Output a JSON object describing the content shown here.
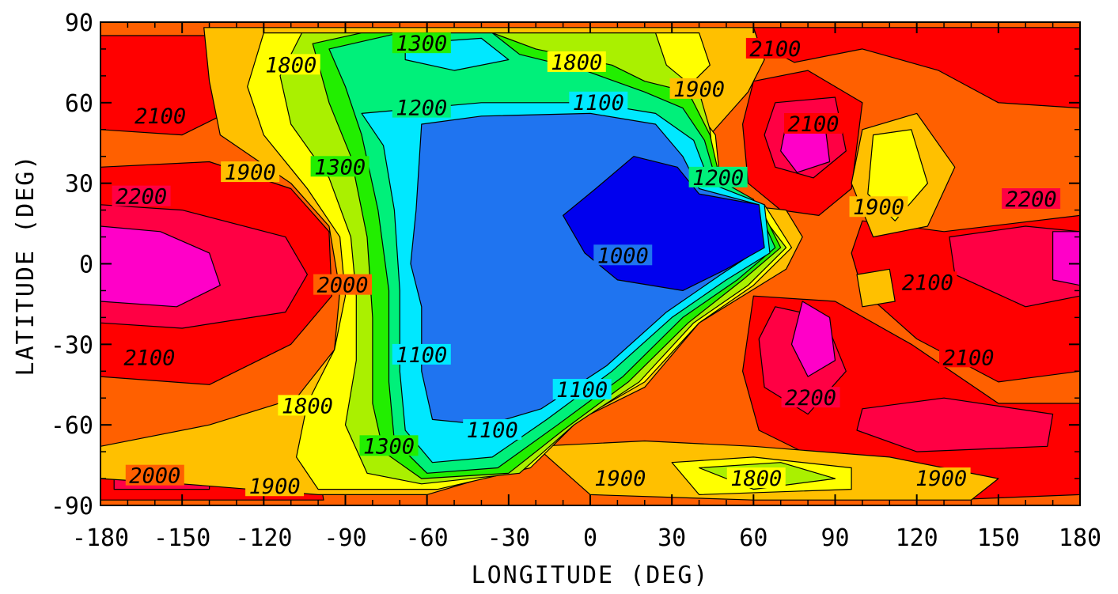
{
  "chart_data": {
    "type": "heatmap",
    "subtype": "filled-contour map",
    "xlabel": "LONGITUDE (DEG)",
    "ylabel": "LATITUDE (DEG)",
    "xlim": [
      -180,
      180
    ],
    "ylim": [
      -90,
      90
    ],
    "xticks": [
      "-180",
      "-150",
      "-120",
      "-90",
      "-60",
      "-30",
      "0",
      "30",
      "60",
      "90",
      "120",
      "150",
      "180"
    ],
    "yticks": [
      "90",
      "60",
      "30",
      "0",
      "-30",
      "-60",
      "-90"
    ],
    "contour_interval": 100,
    "contour_levels": [
      1000,
      1100,
      1200,
      1300,
      1400,
      1500,
      1600,
      1700,
      1800,
      1900,
      2000,
      2100,
      2200,
      2300
    ],
    "colors": {
      "lt1000": "#0000ee",
      "1000": "#1f74f0",
      "1100": "#00e8ff",
      "1200": "#00f07a",
      "1300": "#22ee00",
      "1600": "#aaf000",
      "1800": "#ffff00",
      "1900": "#ffc000",
      "2000": "#ff6000",
      "2100": "#ff0000",
      "2200": "#ff0044",
      "2300": "#ff00c8"
    },
    "contour_labels": [
      {
        "text": "1300",
        "lon": -62,
        "lat": 82
      },
      {
        "text": "1800",
        "lon": -110,
        "lat": 74
      },
      {
        "text": "1800",
        "lon": -5,
        "lat": 75
      },
      {
        "text": "2100",
        "lon": 68,
        "lat": 80
      },
      {
        "text": "1900",
        "lon": 40,
        "lat": 65
      },
      {
        "text": "1200",
        "lon": -62,
        "lat": 58
      },
      {
        "text": "1100",
        "lon": 3,
        "lat": 60
      },
      {
        "text": "2100",
        "lon": -158,
        "lat": 55
      },
      {
        "text": "2100",
        "lon": 82,
        "lat": 52
      },
      {
        "text": "1300",
        "lon": -92,
        "lat": 36
      },
      {
        "text": "1900",
        "lon": -125,
        "lat": 34
      },
      {
        "text": "1200",
        "lon": 47,
        "lat": 32
      },
      {
        "text": "2200",
        "lon": -165,
        "lat": 25
      },
      {
        "text": "1900",
        "lon": 106,
        "lat": 21
      },
      {
        "text": "2200",
        "lon": 162,
        "lat": 24
      },
      {
        "text": "1000",
        "lon": 12,
        "lat": 3
      },
      {
        "text": "2000",
        "lon": -91,
        "lat": -8
      },
      {
        "text": "2100",
        "lon": 124,
        "lat": -7
      },
      {
        "text": "1100",
        "lon": -62,
        "lat": -34
      },
      {
        "text": "2100",
        "lon": -162,
        "lat": -35
      },
      {
        "text": "2100",
        "lon": 139,
        "lat": -35
      },
      {
        "text": "1800",
        "lon": -104,
        "lat": -53
      },
      {
        "text": "1100",
        "lon": -3,
        "lat": -47
      },
      {
        "text": "2200",
        "lon": 81,
        "lat": -50
      },
      {
        "text": "1300",
        "lon": -74,
        "lat": -68
      },
      {
        "text": "1100",
        "lon": -36,
        "lat": -62
      },
      {
        "text": "1900",
        "lon": 11,
        "lat": -80
      },
      {
        "text": "1800",
        "lon": 61,
        "lat": -80
      },
      {
        "text": "1900",
        "lon": 129,
        "lat": -80
      },
      {
        "text": "2000",
        "lon": -160,
        "lat": -79
      },
      {
        "text": "1900",
        "lon": -116,
        "lat": -83
      }
    ]
  }
}
